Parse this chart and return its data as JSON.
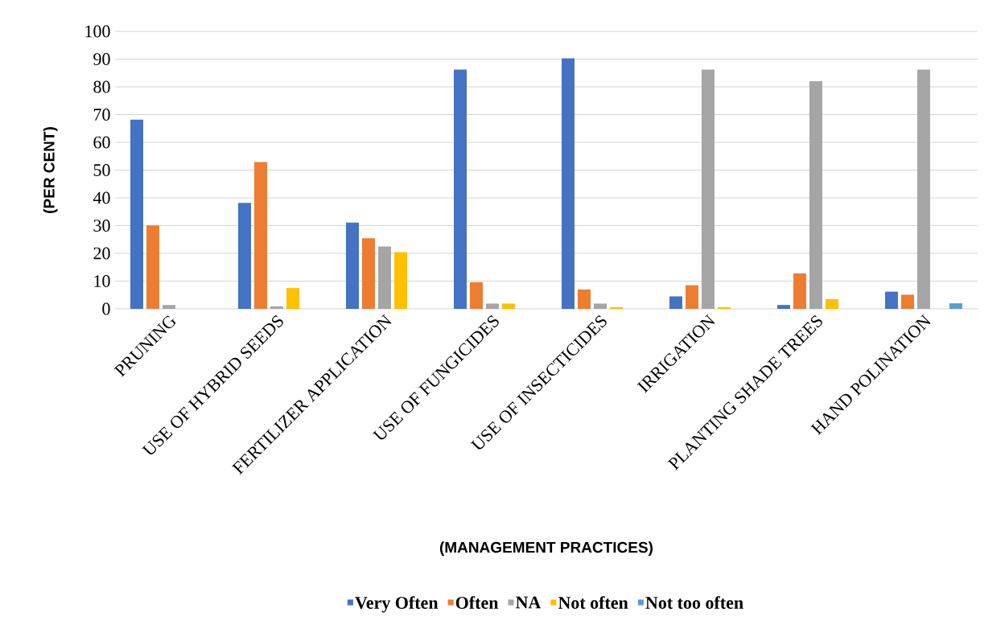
{
  "chart_data": {
    "type": "bar",
    "xlabel": "(MANAGEMENT PRACTICES)",
    "ylabel": "(PER CENT)",
    "categories": [
      "PRUNING",
      "USE OF HYBRID SEEDS",
      "FERTILIZER APPLICATION",
      "USE OF FUNGICIDES",
      "USE OF INSECTICIDES",
      "IRRIGATION",
      "PLANTING SHADE TREES",
      "HAND POLINATION"
    ],
    "series": [
      {
        "name": "Very Often",
        "color": "#4472c4",
        "values": [
          68.2,
          38.2,
          31.1,
          86.2,
          90.3,
          4.5,
          1.4,
          6.2
        ]
      },
      {
        "name": "Often",
        "color": "#ed7d31",
        "values": [
          30.1,
          52.9,
          25.4,
          9.6,
          7.0,
          8.5,
          12.8,
          5.1
        ]
      },
      {
        "name": "NA",
        "color": "#a5a5a5",
        "values": [
          1.4,
          0.9,
          22.5,
          1.9,
          1.9,
          86.2,
          82.0,
          86.2
        ]
      },
      {
        "name": "Not often",
        "color": "#ffc000",
        "values": [
          null,
          7.5,
          20.4,
          1.9,
          0.6,
          0.6,
          3.5,
          null
        ]
      },
      {
        "name": "Not too often",
        "color": "#5b9bd5",
        "values": [
          null,
          null,
          null,
          null,
          null,
          null,
          null,
          2.0
        ]
      }
    ],
    "ylim": [
      0,
      100
    ],
    "yticks": [
      0,
      10,
      20,
      30,
      40,
      50,
      60,
      70,
      80,
      90,
      100
    ],
    "grid": "y",
    "legend": "bottom"
  }
}
